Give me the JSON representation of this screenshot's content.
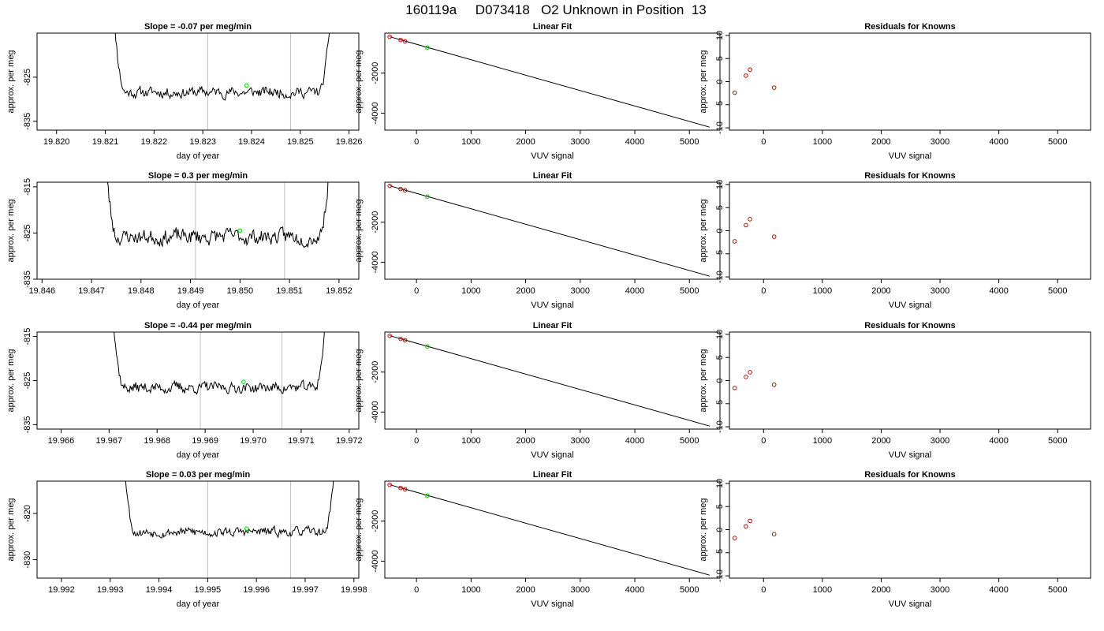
{
  "page": {
    "title": "160119a     D073418   O2 Unknown in Position  13"
  },
  "colors": {
    "series_line": "#000000",
    "marker_knowns": "#cc0000",
    "marker_unknown": "#00cc00",
    "vertical_guides": "#bfbfbf"
  },
  "chart_data": [
    {
      "type": "line",
      "row": 0,
      "col": 0,
      "title": "Slope =  -0.07  per meg/min",
      "xlabel": "day of year",
      "ylabel": "approx. per meg",
      "xlim": [
        19.8196,
        19.8262
      ],
      "ylim": [
        -837,
        -815
      ],
      "xticks": [
        19.82,
        19.821,
        19.822,
        19.823,
        19.824,
        19.825,
        19.826
      ],
      "xtick_labels": [
        "19.820",
        "19.821",
        "19.822",
        "19.823",
        "19.824",
        "19.825",
        "19.826"
      ],
      "yticks": [
        -825,
        -835
      ],
      "ytick_labels": [
        "-825",
        "-835"
      ],
      "vlines": [
        19.8231,
        19.8248
      ],
      "x_start": 19.8211,
      "x_end": 19.8257,
      "baseline": -828.4,
      "amplitude": 2.4,
      "seed": 11,
      "marker": {
        "x": 19.8239,
        "y": -826.9
      }
    },
    {
      "type": "scatter",
      "row": 0,
      "col": 1,
      "title": "Linear Fit",
      "xlabel": "VUV signal",
      "ylabel": "approx. per meg",
      "xlim": [
        -580,
        5560
      ],
      "ylim": [
        -4850,
        0
      ],
      "xticks": [
        0,
        1000,
        2000,
        3000,
        4000,
        5000
      ],
      "xtick_labels": [
        "0",
        "1000",
        "2000",
        "3000",
        "4000",
        "5000"
      ],
      "yticks": [
        -2000,
        -4000
      ],
      "ytick_labels": [
        "-2000",
        "-4000"
      ],
      "line": {
        "x": [
          -490,
          5370
        ],
        "y": [
          -180,
          -4700
        ]
      },
      "points": [
        {
          "x": -490,
          "y": -185
        },
        {
          "x": -290,
          "y": -340
        },
        {
          "x": -210,
          "y": -405
        }
      ],
      "unknown_point": {
        "x": 200,
        "y": -720
      }
    },
    {
      "type": "scatter",
      "row": 0,
      "col": 2,
      "title": "Residuals for Knowns",
      "xlabel": "VUV signal",
      "ylabel": "approx. per meg",
      "xlim": [
        -580,
        5560
      ],
      "ylim": [
        -10.5,
        10.5
      ],
      "xticks": [
        0,
        1000,
        2000,
        3000,
        4000,
        5000
      ],
      "xtick_labels": [
        "0",
        "1000",
        "2000",
        "3000",
        "4000",
        "5000"
      ],
      "yticks": [
        10,
        5,
        0,
        -5,
        -10
      ],
      "ytick_labels": [
        "10",
        "5",
        "0",
        "-5",
        "-10"
      ],
      "points": [
        {
          "x": -490,
          "y": -2.4
        },
        {
          "x": -300,
          "y": 1.3
        },
        {
          "x": -230,
          "y": 2.6
        },
        {
          "x": 180,
          "y": -1.3
        }
      ]
    },
    {
      "type": "line",
      "row": 1,
      "col": 0,
      "title": "Slope =  0.3  per meg/min",
      "xlabel": "day of year",
      "ylabel": "approx. per meg",
      "xlim": [
        19.8459,
        19.8524
      ],
      "ylim": [
        -835,
        -814
      ],
      "xticks": [
        19.846,
        19.847,
        19.848,
        19.849,
        19.85,
        19.851,
        19.852
      ],
      "xtick_labels": [
        "19.846",
        "19.847",
        "19.848",
        "19.849",
        "19.850",
        "19.851",
        "19.852"
      ],
      "yticks": [
        -815,
        -825,
        -835
      ],
      "ytick_labels": [
        "-815",
        "-825",
        "-835"
      ],
      "vlines": [
        19.8491,
        19.8509
      ],
      "x_start": 19.8472,
      "x_end": 19.8519,
      "baseline": -825.8,
      "amplitude": 3.3,
      "seed": 23,
      "marker": {
        "x": 19.85,
        "y": -824.5
      }
    },
    {
      "type": "scatter",
      "row": 1,
      "col": 1,
      "title": "Linear Fit",
      "xlabel": "VUV signal",
      "ylabel": "approx. per meg",
      "xlim": [
        -580,
        5560
      ],
      "ylim": [
        -4850,
        0
      ],
      "xticks": [
        0,
        1000,
        2000,
        3000,
        4000,
        5000
      ],
      "xtick_labels": [
        "0",
        "1000",
        "2000",
        "3000",
        "4000",
        "5000"
      ],
      "yticks": [
        -2000,
        -4000
      ],
      "ytick_labels": [
        "-2000",
        "-4000"
      ],
      "line": {
        "x": [
          -490,
          5370
        ],
        "y": [
          -180,
          -4700
        ]
      },
      "points": [
        {
          "x": -490,
          "y": -185
        },
        {
          "x": -290,
          "y": -340
        },
        {
          "x": -210,
          "y": -405
        }
      ],
      "unknown_point": {
        "x": 200,
        "y": -720
      }
    },
    {
      "type": "scatter",
      "row": 1,
      "col": 2,
      "title": "Residuals for Knowns",
      "xlabel": "VUV signal",
      "ylabel": "approx. per meg",
      "xlim": [
        -580,
        5560
      ],
      "ylim": [
        -10.5,
        10.5
      ],
      "xticks": [
        0,
        1000,
        2000,
        3000,
        4000,
        5000
      ],
      "xtick_labels": [
        "0",
        "1000",
        "2000",
        "3000",
        "4000",
        "5000"
      ],
      "yticks": [
        10,
        5,
        0,
        -5,
        -10
      ],
      "ytick_labels": [
        "10",
        "5",
        "0",
        "-5",
        "-10"
      ],
      "points": [
        {
          "x": -490,
          "y": -2.3
        },
        {
          "x": -300,
          "y": 1.2
        },
        {
          "x": -230,
          "y": 2.5
        },
        {
          "x": 180,
          "y": -1.3
        }
      ]
    },
    {
      "type": "line",
      "row": 2,
      "col": 0,
      "title": "Slope =  -0.44  per meg/min",
      "xlabel": "day of year",
      "ylabel": "approx. per meg",
      "xlim": [
        19.9655,
        19.9722
      ],
      "ylim": [
        -836,
        -814
      ],
      "xticks": [
        19.966,
        19.967,
        19.968,
        19.969,
        19.97,
        19.971,
        19.972
      ],
      "xtick_labels": [
        "19.966",
        "19.967",
        "19.968",
        "19.969",
        "19.970",
        "19.971",
        "19.972"
      ],
      "yticks": [
        -815,
        -825,
        -835
      ],
      "ytick_labels": [
        "-815",
        "-825",
        "-835"
      ],
      "vlines": [
        19.9689,
        19.9706
      ],
      "x_start": 19.967,
      "x_end": 19.9716,
      "baseline": -826.6,
      "amplitude": 2.4,
      "seed": 37,
      "marker": {
        "x": 19.9698,
        "y": -825.3
      }
    },
    {
      "type": "scatter",
      "row": 2,
      "col": 1,
      "title": "Linear Fit",
      "xlabel": "VUV signal",
      "ylabel": "approx. per meg",
      "xlim": [
        -580,
        5560
      ],
      "ylim": [
        -4850,
        0
      ],
      "xticks": [
        0,
        1000,
        2000,
        3000,
        4000,
        5000
      ],
      "xtick_labels": [
        "0",
        "1000",
        "2000",
        "3000",
        "4000",
        "5000"
      ],
      "yticks": [
        -2000,
        -4000
      ],
      "ytick_labels": [
        "-2000",
        "-4000"
      ],
      "line": {
        "x": [
          -490,
          5370
        ],
        "y": [
          -180,
          -4700
        ]
      },
      "points": [
        {
          "x": -490,
          "y": -185
        },
        {
          "x": -290,
          "y": -340
        },
        {
          "x": -210,
          "y": -405
        }
      ],
      "unknown_point": {
        "x": 200,
        "y": -720
      }
    },
    {
      "type": "scatter",
      "row": 2,
      "col": 2,
      "title": "Residuals for Knowns",
      "xlabel": "VUV signal",
      "ylabel": "approx. per meg",
      "xlim": [
        -580,
        5560
      ],
      "ylim": [
        -10.5,
        10.5
      ],
      "xticks": [
        0,
        1000,
        2000,
        3000,
        4000,
        5000
      ],
      "xtick_labels": [
        "0",
        "1000",
        "2000",
        "3000",
        "4000",
        "5000"
      ],
      "yticks": [
        10,
        5,
        0,
        -5,
        -10
      ],
      "ytick_labels": [
        "10",
        "5",
        "0",
        "-5",
        "-10"
      ],
      "points": [
        {
          "x": -490,
          "y": -1.6
        },
        {
          "x": -300,
          "y": 0.8
        },
        {
          "x": -230,
          "y": 1.8
        },
        {
          "x": 180,
          "y": -0.9
        }
      ]
    },
    {
      "type": "line",
      "row": 3,
      "col": 0,
      "title": "Slope =  0.03  per meg/min",
      "xlabel": "day of year",
      "ylabel": "approx. per meg",
      "xlim": [
        19.9915,
        19.9981
      ],
      "ylim": [
        -834,
        -813
      ],
      "xticks": [
        19.992,
        19.993,
        19.994,
        19.995,
        19.996,
        19.997,
        19.998
      ],
      "xtick_labels": [
        "19.992",
        "19.993",
        "19.994",
        "19.995",
        "19.996",
        "19.997",
        "19.998"
      ],
      "yticks": [
        -820,
        -830
      ],
      "ytick_labels": [
        "-820",
        "-830"
      ],
      "vlines": [
        19.995,
        19.9967
      ],
      "x_start": 19.9932,
      "x_end": 19.9977,
      "baseline": -824.0,
      "amplitude": 1.9,
      "seed": 53,
      "marker": {
        "x": 19.9958,
        "y": -823.3
      }
    },
    {
      "type": "scatter",
      "row": 3,
      "col": 1,
      "title": "Linear Fit",
      "xlabel": "VUV signal",
      "ylabel": "approx. per meg",
      "xlim": [
        -580,
        5560
      ],
      "ylim": [
        -4850,
        0
      ],
      "xticks": [
        0,
        1000,
        2000,
        3000,
        4000,
        5000
      ],
      "xtick_labels": [
        "0",
        "1000",
        "2000",
        "3000",
        "4000",
        "5000"
      ],
      "yticks": [
        -2000,
        -4000
      ],
      "ytick_labels": [
        "-2000",
        "-4000"
      ],
      "line": {
        "x": [
          -490,
          5370
        ],
        "y": [
          -180,
          -4700
        ]
      },
      "points": [
        {
          "x": -490,
          "y": -185
        },
        {
          "x": -290,
          "y": -340
        },
        {
          "x": -210,
          "y": -405
        }
      ],
      "unknown_point": {
        "x": 200,
        "y": -720
      }
    },
    {
      "type": "scatter",
      "row": 3,
      "col": 2,
      "title": "Residuals for Knowns",
      "xlabel": "VUV signal",
      "ylabel": "approx. per meg",
      "xlim": [
        -580,
        5560
      ],
      "ylim": [
        -10.5,
        10.5
      ],
      "xticks": [
        0,
        1000,
        2000,
        3000,
        4000,
        5000
      ],
      "xtick_labels": [
        "0",
        "1000",
        "2000",
        "3000",
        "4000",
        "5000"
      ],
      "yticks": [
        10,
        5,
        0,
        -5,
        -10
      ],
      "ytick_labels": [
        "10",
        "5",
        "0",
        "-5",
        "-10"
      ],
      "points": [
        {
          "x": -490,
          "y": -1.8
        },
        {
          "x": -300,
          "y": 0.7
        },
        {
          "x": -230,
          "y": 1.9
        },
        {
          "x": 180,
          "y": -1.0
        }
      ]
    }
  ]
}
